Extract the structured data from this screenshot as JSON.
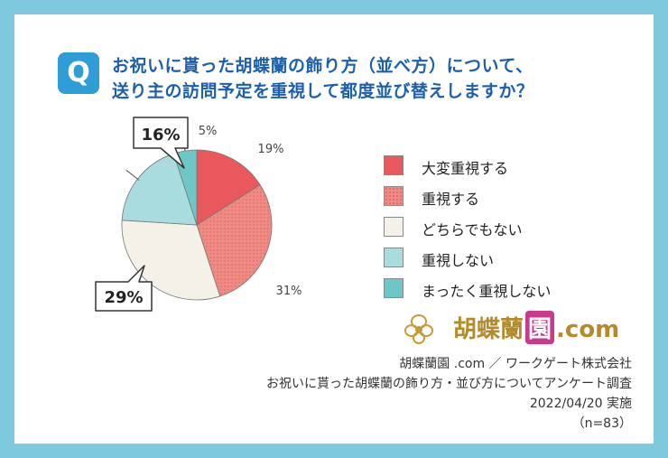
{
  "question": {
    "badge": "Q",
    "line1": "お祝いに貰った胡蝶蘭の飾り方（並べ方）について、",
    "line2": "送り主の訪問予定を重視して都度並び替えしますか？"
  },
  "chart_data": {
    "type": "pie",
    "categories": [
      "大変重視する",
      "重視する",
      "どちらでもない",
      "重視しない",
      "まったく重視しない"
    ],
    "values": [
      16,
      29,
      31,
      19,
      5
    ],
    "labels": [
      "16%",
      "29%",
      "31%",
      "19%",
      "5%"
    ],
    "colors": [
      "#e9585c",
      "#f08a85",
      "#f4f1e8",
      "#a9dcde",
      "#6fc6c6"
    ],
    "start_angle_deg": 0,
    "direction": "clockwise"
  },
  "legend": {
    "items": [
      "大変重視する",
      "重視する",
      "どちらでもない",
      "重視しない",
      "まったく重視しない"
    ]
  },
  "brand": {
    "name": "胡蝶蘭",
    "badge": "園",
    "domain": ".com"
  },
  "notes": {
    "line1": "胡蝶蘭園 .com ／ ワークゲート株式会社",
    "line2": "お祝いに貰った胡蝶蘭の飾り方・並び方についてアンケート調査",
    "line3": "2022/04/20 実施",
    "line4": "（n=83）"
  }
}
